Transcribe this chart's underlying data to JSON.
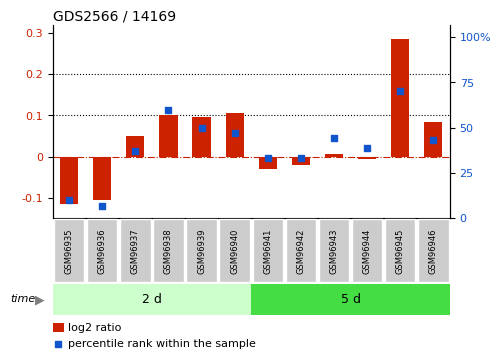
{
  "title": "GDS2566 / 14169",
  "categories": [
    "GSM96935",
    "GSM96936",
    "GSM96937",
    "GSM96938",
    "GSM96939",
    "GSM96940",
    "GSM96941",
    "GSM96942",
    "GSM96943",
    "GSM96944",
    "GSM96945",
    "GSM96946"
  ],
  "log2_ratio": [
    -0.115,
    -0.105,
    0.05,
    0.1,
    0.095,
    0.105,
    -0.03,
    -0.02,
    0.005,
    -0.005,
    0.285,
    0.085
  ],
  "percentile_rank": [
    0.1,
    0.065,
    0.37,
    0.6,
    0.5,
    0.47,
    0.33,
    0.33,
    0.44,
    0.39,
    0.7,
    0.43
  ],
  "group1_label": "2 d",
  "group2_label": "5 d",
  "group1_count": 6,
  "group2_count": 6,
  "bar_color": "#cc2200",
  "dot_color": "#1155cc",
  "ylim_left": [
    -0.15,
    0.32
  ],
  "ylim_right": [
    0,
    1.0667
  ],
  "yticks_left": [
    -0.1,
    0.0,
    0.1,
    0.2,
    0.3
  ],
  "yticks_right": [
    0,
    0.25,
    0.5,
    0.75,
    1.0
  ],
  "ytick_labels_left": [
    "-0.1",
    "0",
    "0.1",
    "0.2",
    "0.3"
  ],
  "ytick_labels_right": [
    "0",
    "25",
    "50",
    "75",
    "100%"
  ],
  "hlines": [
    0.1,
    0.2
  ],
  "zero_line_color": "#cc2200",
  "group1_bg": "#ccffcc",
  "group2_bg": "#44dd44",
  "label_bg": "#cccccc",
  "time_label": "time",
  "legend_bar_label": "log2 ratio",
  "legend_dot_label": "percentile rank within the sample"
}
